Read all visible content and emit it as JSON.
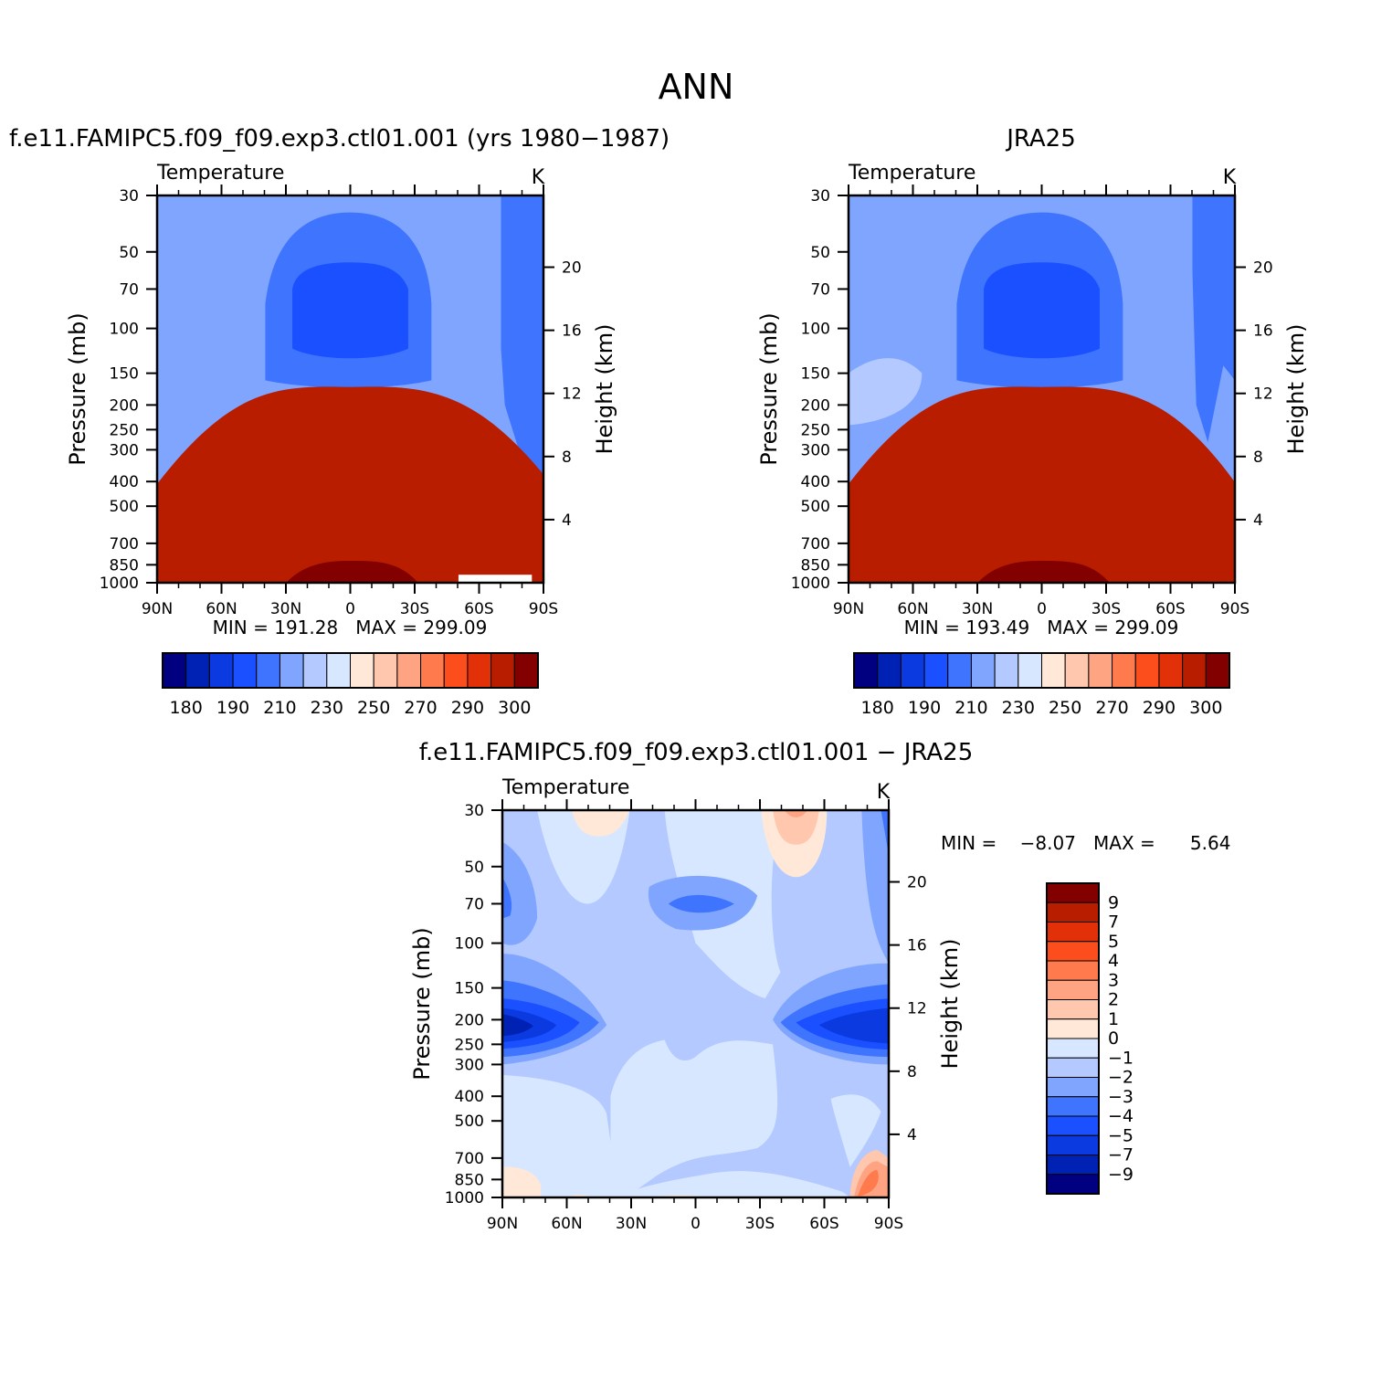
{
  "figure_title": "ANN",
  "colors": {
    "abs_scale": [
      "#000080",
      "#0022b4",
      "#0a3ae0",
      "#1a50ff",
      "#3f74ff",
      "#7fa5ff",
      "#b3c9ff",
      "#d7e7ff",
      "#ffe8d8",
      "#ffc8ae",
      "#ffa482",
      "#ff7a4c",
      "#fb4e1c",
      "#e23008",
      "#b81d00",
      "#820000"
    ],
    "diff_scale": [
      "#000080",
      "#0022b4",
      "#0a3ae0",
      "#1a50ff",
      "#3f74ff",
      "#7fa5ff",
      "#b3c9ff",
      "#d7e7ff",
      "#ffe8d8",
      "#ffc8ae",
      "#ffa482",
      "#ff7a4c",
      "#fb4e1c",
      "#e23008",
      "#b81d00",
      "#820000"
    ]
  },
  "chart_data": [
    {
      "type": "contour",
      "title": "f.e11.FAMIPC5.f09_f09.exp3.ctl01.001 (yrs 1980−1987)",
      "subtitle_left": "Temperature",
      "units": "K",
      "ylabel": "Pressure (mb)",
      "ylabel2": "Height (km)",
      "x_ticks": [
        "90N",
        "60N",
        "30N",
        "0",
        "30S",
        "60S",
        "90S"
      ],
      "x": [
        90,
        60,
        30,
        0,
        -30,
        -60,
        -90
      ],
      "y_ticks": [
        "30",
        "50",
        "70",
        "100",
        "150",
        "200",
        "250",
        "300",
        "400",
        "500",
        "700",
        "850",
        "1000"
      ],
      "y2_ticks": [
        "20",
        "16",
        "12",
        "8",
        "4"
      ],
      "stats": "MIN = 191.28   MAX = 299.09",
      "min": 191.28,
      "max": 299.09,
      "colorbar_labels": [
        "180",
        "190",
        "210",
        "230",
        "250",
        "270",
        "290",
        "300"
      ]
    },
    {
      "type": "contour",
      "title": "JRA25",
      "subtitle_left": "Temperature",
      "units": "K",
      "ylabel": "Pressure (mb)",
      "ylabel2": "Height (km)",
      "x_ticks": [
        "90N",
        "60N",
        "30N",
        "0",
        "30S",
        "60S",
        "90S"
      ],
      "x": [
        90,
        60,
        30,
        0,
        -30,
        -60,
        -90
      ],
      "y_ticks": [
        "30",
        "50",
        "70",
        "100",
        "150",
        "200",
        "250",
        "300",
        "400",
        "500",
        "700",
        "850",
        "1000"
      ],
      "y2_ticks": [
        "20",
        "16",
        "12",
        "8",
        "4"
      ],
      "stats": "MIN = 193.49   MAX = 299.09",
      "min": 193.49,
      "max": 299.09,
      "colorbar_labels": [
        "180",
        "190",
        "210",
        "230",
        "250",
        "270",
        "290",
        "300"
      ]
    },
    {
      "type": "contour",
      "title": "f.e11.FAMIPC5.f09_f09.exp3.ctl01.001 − JRA25",
      "subtitle_left": "Temperature",
      "units": "K",
      "ylabel": "Pressure (mb)",
      "ylabel2": "Height (km)",
      "x_ticks": [
        "90N",
        "60N",
        "30N",
        "0",
        "30S",
        "60S",
        "90S"
      ],
      "x": [
        90,
        60,
        30,
        0,
        -30,
        -60,
        -90
      ],
      "y_ticks": [
        "30",
        "50",
        "70",
        "100",
        "150",
        "200",
        "250",
        "300",
        "400",
        "500",
        "700",
        "850",
        "1000"
      ],
      "y2_ticks": [
        "20",
        "16",
        "12",
        "8",
        "4"
      ],
      "stats": "MIN =    −8.07   MAX =      5.64",
      "min": -8.07,
      "max": 5.64,
      "colorbar_labels": [
        "9",
        "7",
        "5",
        "4",
        "3",
        "2",
        "1",
        "0",
        "−1",
        "−2",
        "−3",
        "−4",
        "−5",
        "−7",
        "−9"
      ]
    }
  ]
}
